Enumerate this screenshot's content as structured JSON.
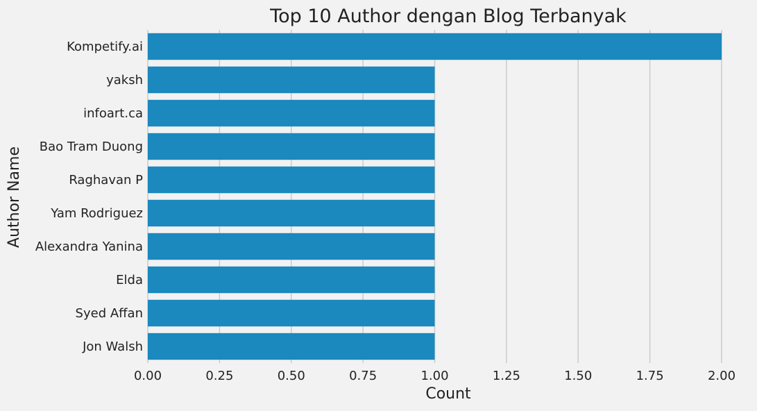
{
  "chart_data": {
    "type": "bar",
    "orientation": "horizontal",
    "title": "Top 10 Author dengan Blog Terbanyak",
    "xlabel": "Count",
    "ylabel": "Author Name",
    "categories": [
      "Kompetify.ai",
      "yaksh",
      "infoart.ca",
      "Bao Tram Duong",
      "Raghavan P",
      "Yam Rodriguez",
      "Alexandra Yanina",
      "Elda",
      "Syed Affan",
      "Jon Walsh"
    ],
    "values": [
      2,
      1,
      1,
      1,
      1,
      1,
      1,
      1,
      1,
      1
    ],
    "xlim": [
      0,
      2
    ],
    "xticks": [
      "0.00",
      "0.25",
      "0.50",
      "0.75",
      "1.00",
      "1.25",
      "1.50",
      "1.75",
      "2.00"
    ],
    "grid": "vertical",
    "legend": "none",
    "colors": {
      "bar": "#1b88be",
      "background": "#f2f2f2",
      "grid": "#cbcbcb",
      "text": "#222222"
    }
  }
}
